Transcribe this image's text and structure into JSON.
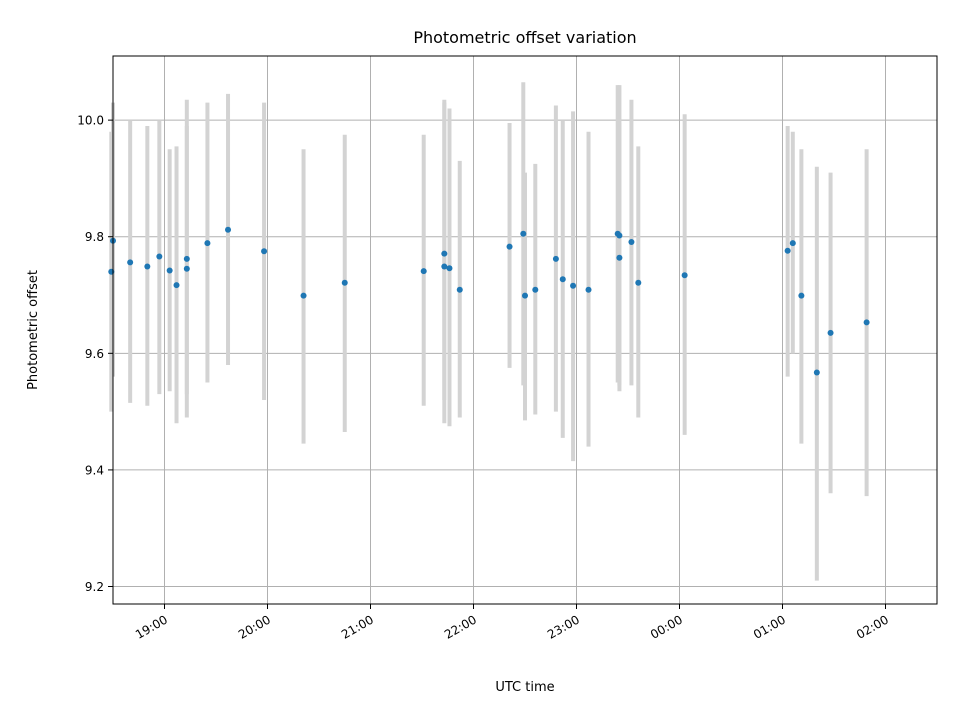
{
  "chart_data": {
    "type": "scatter",
    "title": "Photometric offset variation",
    "xlabel": "UTC time",
    "ylabel": "Photometric offset",
    "x_axis_kind": "time",
    "xlim": [
      "18:30",
      "02:30"
    ],
    "ylim": [
      9.17,
      10.11
    ],
    "yticks": [
      9.2,
      9.4,
      9.6,
      9.8,
      10.0
    ],
    "ytick_labels": [
      "9.2",
      "9.4",
      "9.6",
      "9.8",
      "10.0"
    ],
    "xticks": [
      "19:00",
      "20:00",
      "21:00",
      "22:00",
      "23:00",
      "00:00",
      "01:00",
      "02:00"
    ],
    "xtick_labels": [
      "19:00",
      "20:00",
      "21:00",
      "22:00",
      "23:00",
      "00:00",
      "01:00",
      "02:00"
    ],
    "grid": true,
    "colors": {
      "points": "#1f77b4",
      "errorbars": "#d3d3d3",
      "grid": "#b0b0b0"
    },
    "series": [
      {
        "points": [
          {
            "x": "18:29",
            "y": 9.74,
            "lo": 9.5,
            "hi": 9.98
          },
          {
            "x": "18:30",
            "y": 9.793,
            "lo": 9.56,
            "hi": 10.03
          },
          {
            "x": "18:40",
            "y": 9.756,
            "lo": 9.515,
            "hi": 10.0
          },
          {
            "x": "18:50",
            "y": 9.749,
            "lo": 9.51,
            "hi": 9.99
          },
          {
            "x": "18:57",
            "y": 9.766,
            "lo": 9.53,
            "hi": 10.0
          },
          {
            "x": "19:03",
            "y": 9.742,
            "lo": 9.535,
            "hi": 9.95
          },
          {
            "x": "19:07",
            "y": 9.717,
            "lo": 9.48,
            "hi": 9.955
          },
          {
            "x": "19:13",
            "y": 9.762,
            "lo": 9.53,
            "hi": 9.99
          },
          {
            "x": "19:13",
            "y": 9.745,
            "lo": 9.49,
            "hi": 10.035
          },
          {
            "x": "19:25",
            "y": 9.789,
            "lo": 9.55,
            "hi": 10.03
          },
          {
            "x": "19:37",
            "y": 9.812,
            "lo": 9.58,
            "hi": 10.045
          },
          {
            "x": "19:58",
            "y": 9.775,
            "lo": 9.52,
            "hi": 10.03
          },
          {
            "x": "20:21",
            "y": 9.699,
            "lo": 9.445,
            "hi": 9.95
          },
          {
            "x": "20:45",
            "y": 9.721,
            "lo": 9.465,
            "hi": 9.975
          },
          {
            "x": "21:31",
            "y": 9.741,
            "lo": 9.51,
            "hi": 9.975
          },
          {
            "x": "21:43",
            "y": 9.771,
            "lo": 9.52,
            "hi": 10.035
          },
          {
            "x": "21:43",
            "y": 9.749,
            "lo": 9.48,
            "hi": 10.03
          },
          {
            "x": "21:46",
            "y": 9.746,
            "lo": 9.475,
            "hi": 10.02
          },
          {
            "x": "21:52",
            "y": 9.709,
            "lo": 9.49,
            "hi": 9.93
          },
          {
            "x": "22:21",
            "y": 9.783,
            "lo": 9.575,
            "hi": 9.995
          },
          {
            "x": "22:29",
            "y": 9.805,
            "lo": 9.545,
            "hi": 10.065
          },
          {
            "x": "22:30",
            "y": 9.699,
            "lo": 9.485,
            "hi": 9.91
          },
          {
            "x": "22:36",
            "y": 9.709,
            "lo": 9.495,
            "hi": 9.925
          },
          {
            "x": "22:48",
            "y": 9.762,
            "lo": 9.5,
            "hi": 10.025
          },
          {
            "x": "22:52",
            "y": 9.727,
            "lo": 9.455,
            "hi": 10.0
          },
          {
            "x": "22:58",
            "y": 9.716,
            "lo": 9.415,
            "hi": 10.015
          },
          {
            "x": "23:07",
            "y": 9.709,
            "lo": 9.44,
            "hi": 9.98
          },
          {
            "x": "23:24",
            "y": 9.805,
            "lo": 9.55,
            "hi": 10.06
          },
          {
            "x": "23:25",
            "y": 9.802,
            "lo": 9.545,
            "hi": 10.06
          },
          {
            "x": "23:25",
            "y": 9.764,
            "lo": 9.535,
            "hi": 9.995
          },
          {
            "x": "23:32",
            "y": 9.791,
            "lo": 9.545,
            "hi": 10.035
          },
          {
            "x": "23:36",
            "y": 9.721,
            "lo": 9.49,
            "hi": 9.955
          },
          {
            "x": "00:03",
            "y": 9.734,
            "lo": 9.46,
            "hi": 10.01
          },
          {
            "x": "01:03",
            "y": 9.776,
            "lo": 9.56,
            "hi": 9.99
          },
          {
            "x": "01:06",
            "y": 9.789,
            "lo": 9.6,
            "hi": 9.98
          },
          {
            "x": "01:11",
            "y": 9.699,
            "lo": 9.445,
            "hi": 9.95
          },
          {
            "x": "01:20",
            "y": 9.567,
            "lo": 9.21,
            "hi": 9.92
          },
          {
            "x": "01:28",
            "y": 9.635,
            "lo": 9.36,
            "hi": 9.91
          },
          {
            "x": "01:49",
            "y": 9.653,
            "lo": 9.355,
            "hi": 9.95
          }
        ]
      }
    ]
  }
}
